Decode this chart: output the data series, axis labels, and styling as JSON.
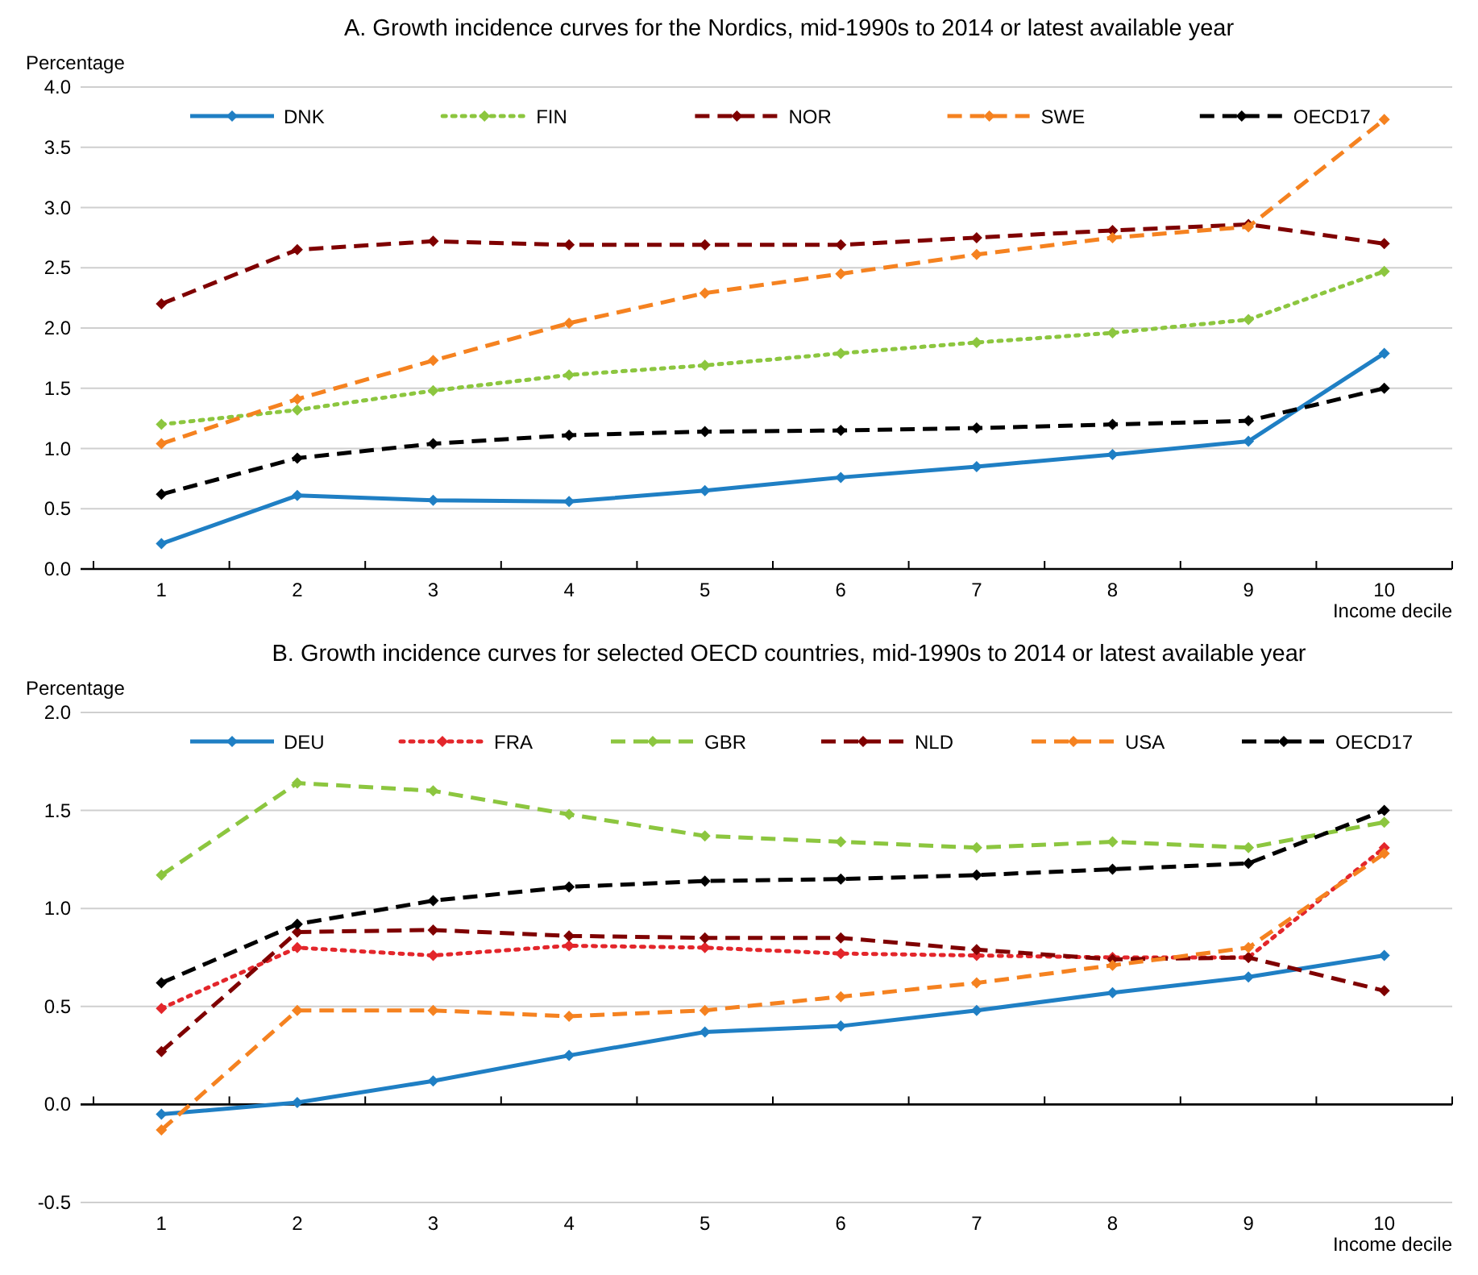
{
  "chart_data": [
    {
      "type": "line",
      "title": "A. Growth incidence curves for the Nordics, mid-1990s to 2014 or latest available year",
      "ylabel": "Percentage",
      "xlabel": "Income decile",
      "categories": [
        "1",
        "2",
        "3",
        "4",
        "5",
        "6",
        "7",
        "8",
        "9",
        "10"
      ],
      "ylim": [
        0,
        4
      ],
      "yticks": [
        {
          "value": 0,
          "label": "0.0"
        },
        {
          "value": 0.5,
          "label": "0.5"
        },
        {
          "value": 1,
          "label": "1.0"
        },
        {
          "value": 1.5,
          "label": "1.5"
        },
        {
          "value": 2,
          "label": "2.0"
        },
        {
          "value": 2.5,
          "label": "2.5"
        },
        {
          "value": 3,
          "label": "3.0"
        },
        {
          "value": 3.5,
          "label": "3.5"
        },
        {
          "value": 4,
          "label": "4.0"
        }
      ],
      "grid": "y",
      "legend": "top",
      "marker": "diamond",
      "series": [
        {
          "name": "DNK",
          "color": "#1f7fc4",
          "line_style": "solid",
          "values": [
            0.21,
            0.61,
            0.57,
            0.56,
            0.65,
            0.76,
            0.85,
            0.95,
            1.06,
            1.79
          ]
        },
        {
          "name": "FIN",
          "color": "#8cc63f",
          "line_style": "dotted",
          "values": [
            1.2,
            1.32,
            1.48,
            1.61,
            1.69,
            1.79,
            1.88,
            1.96,
            2.07,
            2.47
          ]
        },
        {
          "name": "NOR",
          "color": "#7f0000",
          "line_style": "dashed",
          "values": [
            2.2,
            2.65,
            2.72,
            2.69,
            2.69,
            2.69,
            2.75,
            2.81,
            2.86,
            2.7
          ]
        },
        {
          "name": "SWE",
          "color": "#f58220",
          "line_style": "dashed",
          "values": [
            1.04,
            1.41,
            1.73,
            2.04,
            2.29,
            2.45,
            2.61,
            2.75,
            2.84,
            3.73
          ]
        },
        {
          "name": "OECD17",
          "color": "#000000",
          "line_style": "dashed",
          "values": [
            0.62,
            0.92,
            1.04,
            1.11,
            1.14,
            1.15,
            1.17,
            1.2,
            1.23,
            1.5
          ]
        }
      ]
    },
    {
      "type": "line",
      "title": "B. Growth incidence curves for selected OECD countries, mid-1990s to 2014 or latest available year",
      "ylabel": "Percentage",
      "xlabel": "Income decile",
      "categories": [
        "1",
        "2",
        "3",
        "4",
        "5",
        "6",
        "7",
        "8",
        "9",
        "10"
      ],
      "ylim": [
        -0.5,
        2
      ],
      "yticks": [
        {
          "value": -0.5,
          "label": "-0.5"
        },
        {
          "value": 0,
          "label": "0.0"
        },
        {
          "value": 0.5,
          "label": "0.5"
        },
        {
          "value": 1,
          "label": "1.0"
        },
        {
          "value": 1.5,
          "label": "1.5"
        },
        {
          "value": 2,
          "label": "2.0"
        }
      ],
      "grid": "y",
      "legend": "top",
      "marker": "diamond",
      "series": [
        {
          "name": "DEU",
          "color": "#1f7fc4",
          "line_style": "solid",
          "values": [
            -0.05,
            0.01,
            0.12,
            0.25,
            0.37,
            0.4,
            0.48,
            0.57,
            0.65,
            0.76
          ]
        },
        {
          "name": "FRA",
          "color": "#e3262b",
          "line_style": "dotted",
          "values": [
            0.49,
            0.8,
            0.76,
            0.81,
            0.8,
            0.77,
            0.76,
            0.75,
            0.75,
            1.31
          ]
        },
        {
          "name": "GBR",
          "color": "#8cc63f",
          "line_style": "dashed",
          "values": [
            1.17,
            1.64,
            1.6,
            1.48,
            1.37,
            1.34,
            1.31,
            1.34,
            1.31,
            1.44
          ]
        },
        {
          "name": "NLD",
          "color": "#7f0000",
          "line_style": "dashed",
          "values": [
            0.27,
            0.88,
            0.89,
            0.86,
            0.85,
            0.85,
            0.79,
            0.74,
            0.75,
            0.58
          ]
        },
        {
          "name": "USA",
          "color": "#f58220",
          "line_style": "dashed",
          "values": [
            -0.13,
            0.48,
            0.48,
            0.45,
            0.48,
            0.55,
            0.62,
            0.71,
            0.8,
            1.28
          ]
        },
        {
          "name": "OECD17",
          "color": "#000000",
          "line_style": "dashed",
          "values": [
            0.62,
            0.92,
            1.04,
            1.11,
            1.14,
            1.15,
            1.17,
            1.2,
            1.23,
            1.5
          ]
        }
      ]
    }
  ]
}
